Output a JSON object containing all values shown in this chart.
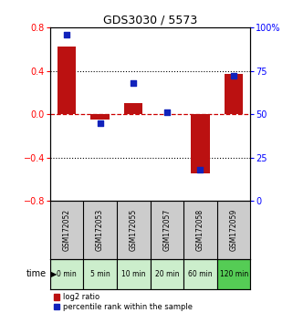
{
  "title": "GDS3030 / 5573",
  "samples": [
    "GSM172052",
    "GSM172053",
    "GSM172055",
    "GSM172057",
    "GSM172058",
    "GSM172059"
  ],
  "time_labels": [
    "0 min",
    "5 min",
    "10 min",
    "20 min",
    "60 min",
    "120 min"
  ],
  "time_bg_colors": [
    "#cceecc",
    "#cceecc",
    "#cceecc",
    "#cceecc",
    "#cceecc",
    "#55cc55"
  ],
  "log2_ratio": [
    0.62,
    -0.05,
    0.1,
    0.0,
    -0.55,
    0.37
  ],
  "percentile_rank": [
    96,
    45,
    68,
    51,
    18,
    72
  ],
  "bar_color": "#bb1111",
  "dot_color": "#1122bb",
  "left_ylim": [
    -0.8,
    0.8
  ],
  "right_ylim": [
    0,
    100
  ],
  "left_yticks": [
    -0.8,
    -0.4,
    0.0,
    0.4,
    0.8
  ],
  "right_yticks": [
    0,
    25,
    50,
    75,
    100
  ],
  "right_yticklabels": [
    "0",
    "25",
    "50",
    "75",
    "100%"
  ],
  "hline_color": "#cc0000",
  "dotted_color": "#000000",
  "sample_bg_color": "#cccccc",
  "legend_red_label": "log2 ratio",
  "legend_blue_label": "percentile rank within the sample",
  "bar_width": 0.55,
  "dot_size": 25
}
